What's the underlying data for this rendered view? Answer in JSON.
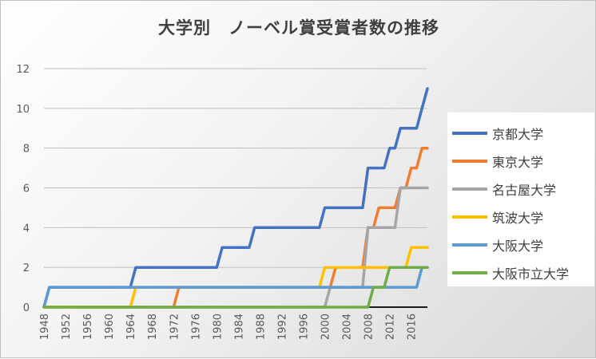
{
  "chart_data": {
    "type": "line",
    "title": "大学別　ノーベル賞受賞者数の推移",
    "xlabel": "",
    "ylabel": "",
    "xlim": [
      1948,
      2019
    ],
    "ylim": [
      0,
      12
    ],
    "yticks": [
      0,
      2,
      4,
      6,
      8,
      10,
      12
    ],
    "xticks": [
      1948,
      1952,
      1956,
      1960,
      1964,
      1968,
      1972,
      1976,
      1980,
      1984,
      1988,
      1992,
      1996,
      2000,
      2004,
      2008,
      2012,
      2016
    ],
    "grid": true,
    "legend_position": "right",
    "series": [
      {
        "name": "京都大学",
        "color": "#4472C4",
        "points": [
          [
            1948,
            0
          ],
          [
            1949,
            1
          ],
          [
            1964,
            1
          ],
          [
            1965,
            2
          ],
          [
            1980,
            2
          ],
          [
            1981,
            3
          ],
          [
            1986,
            3
          ],
          [
            1987,
            4
          ],
          [
            1999,
            4
          ],
          [
            2000,
            5
          ],
          [
            2007,
            5
          ],
          [
            2008,
            7
          ],
          [
            2011,
            7
          ],
          [
            2012,
            8
          ],
          [
            2013,
            8
          ],
          [
            2014,
            9
          ],
          [
            2017,
            9
          ],
          [
            2018,
            10
          ],
          [
            2019,
            11
          ]
        ]
      },
      {
        "name": "東京大学",
        "color": "#ED7D31",
        "points": [
          [
            1948,
            0
          ],
          [
            1972,
            0
          ],
          [
            1973,
            1
          ],
          [
            2001,
            1
          ],
          [
            2002,
            2
          ],
          [
            2007,
            2
          ],
          [
            2008,
            4
          ],
          [
            2009,
            4
          ],
          [
            2010,
            5
          ],
          [
            2013,
            5
          ],
          [
            2014,
            6
          ],
          [
            2015,
            6
          ],
          [
            2016,
            7
          ],
          [
            2017,
            7
          ],
          [
            2018,
            8
          ],
          [
            2019,
            8
          ]
        ]
      },
      {
        "name": "名古屋大学",
        "color": "#A5A5A5",
        "points": [
          [
            1948,
            0
          ],
          [
            2000,
            0
          ],
          [
            2001,
            1
          ],
          [
            2007,
            1
          ],
          [
            2008,
            4
          ],
          [
            2013,
            4
          ],
          [
            2014,
            6
          ],
          [
            2019,
            6
          ]
        ]
      },
      {
        "name": "筑波大学",
        "color": "#FFC000",
        "points": [
          [
            1948,
            0
          ],
          [
            1964,
            0
          ],
          [
            1965,
            1
          ],
          [
            1999,
            1
          ],
          [
            2000,
            2
          ],
          [
            2015,
            2
          ],
          [
            2016,
            3
          ],
          [
            2019,
            3
          ]
        ]
      },
      {
        "name": "大阪大学",
        "color": "#5B9BD5",
        "points": [
          [
            1948,
            0
          ],
          [
            1949,
            1
          ],
          [
            2017,
            1
          ],
          [
            2018,
            2
          ],
          [
            2019,
            2
          ]
        ]
      },
      {
        "name": "大阪市立大学",
        "color": "#70AD47",
        "points": [
          [
            1948,
            0
          ],
          [
            2008,
            0
          ],
          [
            2009,
            1
          ],
          [
            2011,
            1
          ],
          [
            2012,
            2
          ],
          [
            2019,
            2
          ]
        ]
      }
    ]
  }
}
